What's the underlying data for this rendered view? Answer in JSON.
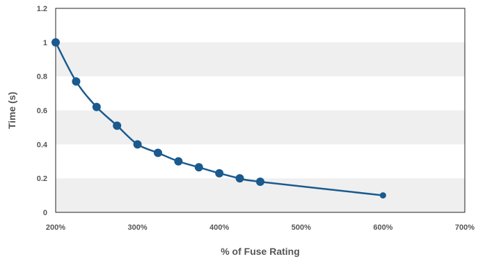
{
  "chart_data": {
    "type": "line",
    "xlabel": "% of Fuse Rating",
    "ylabel": "Time (s)",
    "xlim": [
      200,
      700
    ],
    "ylim": [
      0,
      1.2
    ],
    "x_ticks": [
      "200%",
      "300%",
      "400%",
      "500%",
      "600%",
      "700%"
    ],
    "x_tick_values": [
      200,
      300,
      400,
      500,
      600,
      700
    ],
    "y_ticks": [
      "0",
      "0.2",
      "0.4",
      "0.6",
      "0.8",
      "1",
      "1.2"
    ],
    "y_tick_values": [
      0,
      0.2,
      0.4,
      0.6,
      0.8,
      1.0,
      1.2
    ],
    "grid": "horizontal alternating bands",
    "legend": "none",
    "series": [
      {
        "x": [
          200,
          225,
          250,
          275,
          300,
          325,
          350,
          375,
          400,
          425,
          450,
          600
        ],
        "y": [
          1.0,
          0.77,
          0.62,
          0.51,
          0.4,
          0.35,
          0.3,
          0.265,
          0.23,
          0.2,
          0.18,
          0.1
        ],
        "color": "#1a5a8e"
      }
    ],
    "band_color": "#efefef",
    "axis_color": "#222222"
  }
}
